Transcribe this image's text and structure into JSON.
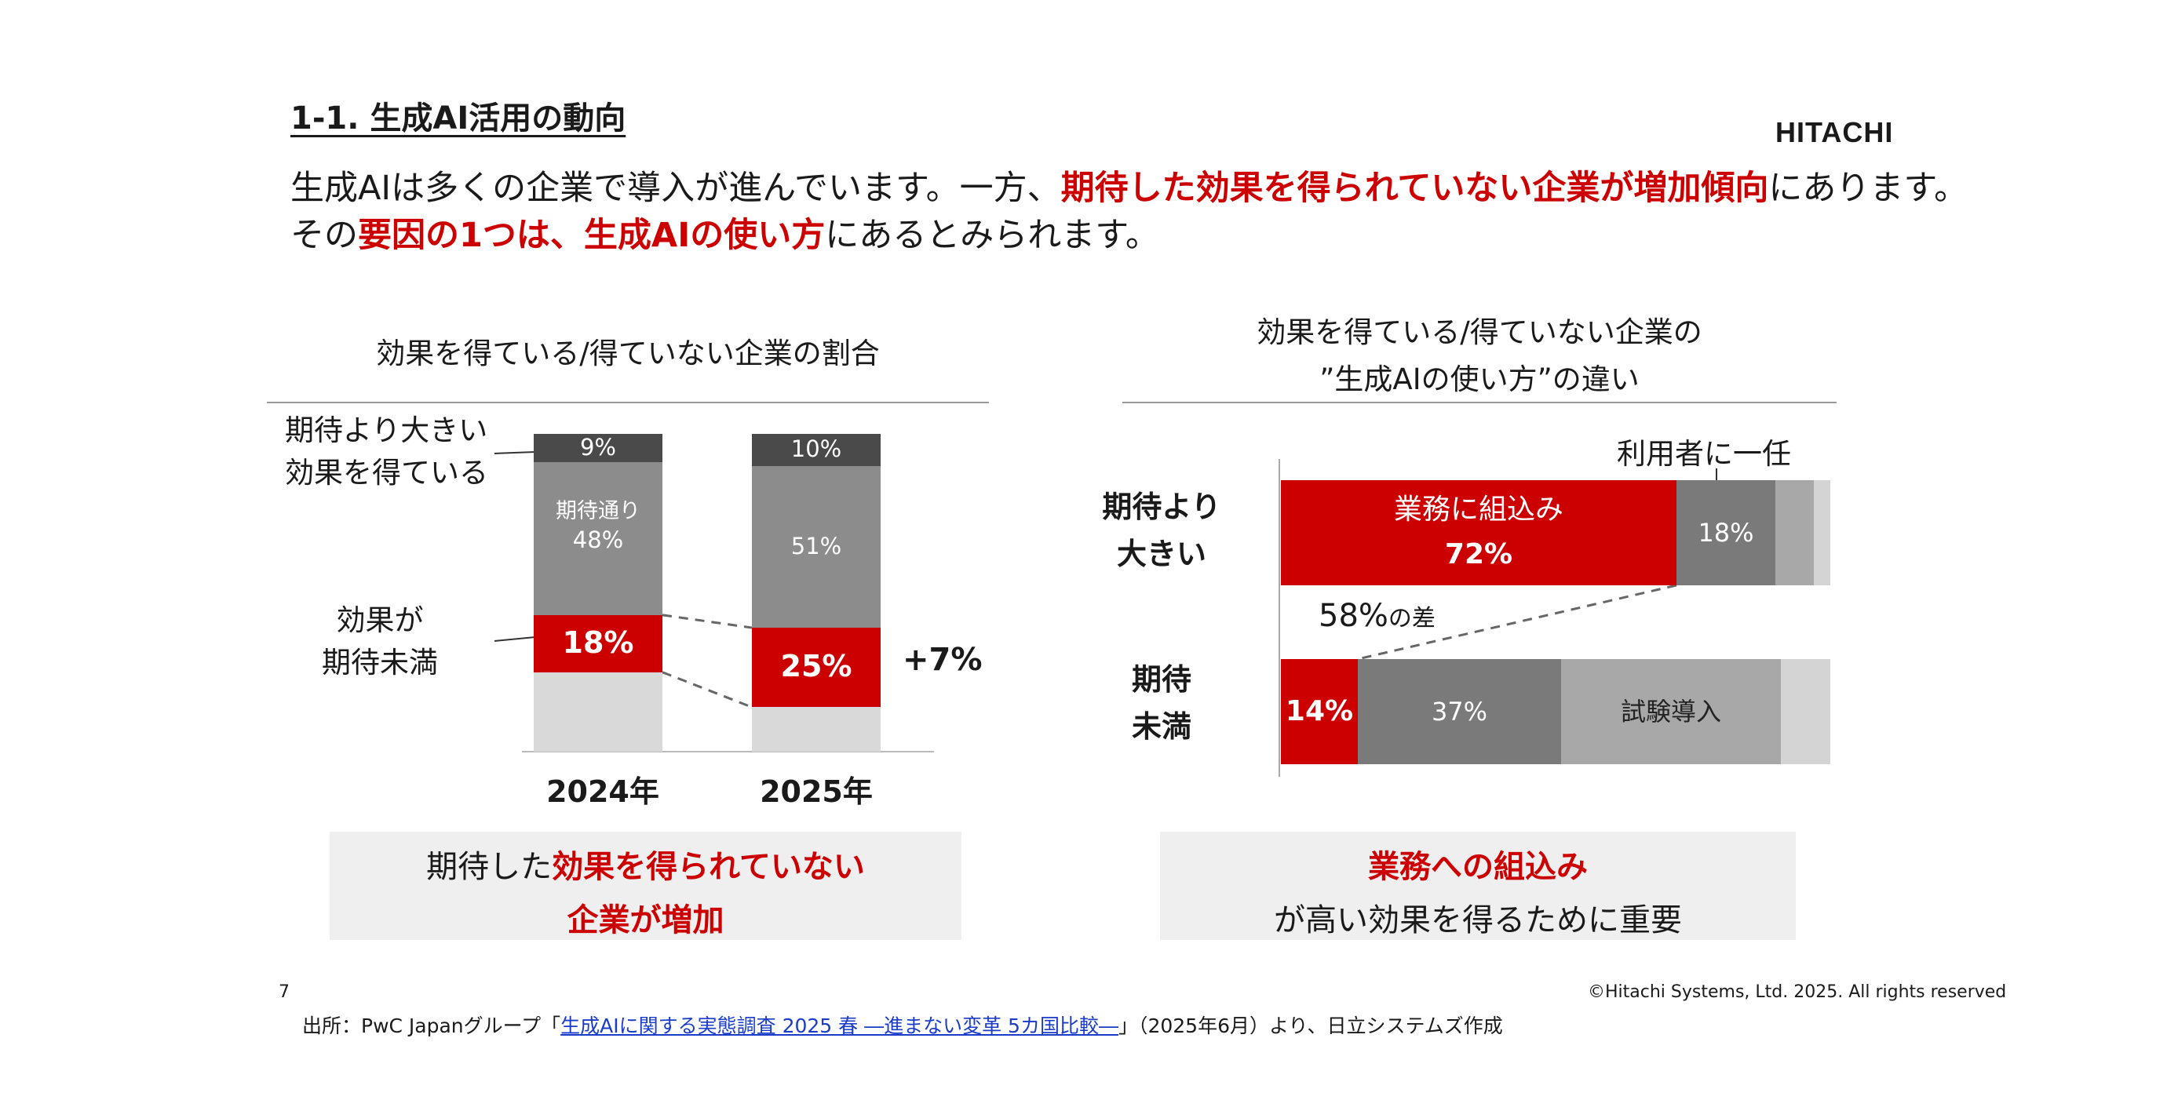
{
  "slide": {
    "title": "1-1. 生成AI活用の動向",
    "logo": "HITACHI",
    "lead_line1": [
      "生成AIは多くの企業で導入が進んでいます。一方、",
      "期待した効果を得られていない企業が増加傾向",
      "にあります。"
    ],
    "lead_line2": [
      "その",
      "要因の1つは、生成AIの使い方",
      "にあるとみられます。"
    ]
  },
  "left_chart": {
    "title": "効果を得ている/得ていない企業の割合",
    "label_above": [
      "期待より大きい",
      "効果を得ている"
    ],
    "label_below": [
      "効果が",
      "期待未満"
    ],
    "inner_label_2024": "期待通り",
    "diff_label": "+7%",
    "callout": [
      "期待した",
      "効果を得られていない",
      "企業が増加"
    ]
  },
  "right_chart": {
    "title_line1": "効果を得ている/得ていない企業の",
    "title_line2": "”生成AIの使い方”の違い",
    "label_top": "利用者に一任",
    "label_diff_num": "58%",
    "label_diff_suffix": "の差",
    "cat_top": [
      "期待より",
      "大きい"
    ],
    "cat_bottom": [
      "期待",
      "未満"
    ],
    "seg_top_red_label": "業務に組込み",
    "seg_bottom_trial_label": "試験導入",
    "callout_line1": "業務への組込み",
    "callout_line2": "が高い効果を得るために重要"
  },
  "chart_data": [
    {
      "type": "bar",
      "stacked": true,
      "categories": [
        "2024年",
        "2025年"
      ],
      "series": [
        {
          "name": "効果が期待未満",
          "values": [
            18,
            25
          ],
          "color": "#cc0000"
        },
        {
          "name": "期待通り",
          "values": [
            48,
            51
          ],
          "color": "#8c8c8c"
        },
        {
          "name": "期待より大きい効果を得ている",
          "values": [
            9,
            10
          ],
          "color": "#4a4a4a"
        }
      ],
      "value_labels": {
        "期待より大きい効果を得ている": [
          "9%",
          "10%"
        ],
        "期待通り": [
          "48%",
          "51%"
        ],
        "効果が期待未満": [
          "18%",
          "25%"
        ]
      },
      "remainder_color": "#d9d9d9",
      "ylim": [
        0,
        100
      ]
    },
    {
      "type": "bar",
      "orientation": "horizontal",
      "stacked": true,
      "categories": [
        "期待より大きい",
        "期待未満"
      ],
      "series": [
        {
          "name": "業務に組込み",
          "values": [
            72,
            14
          ],
          "labels": [
            "72%",
            "14%"
          ],
          "color": "#cc0000"
        },
        {
          "name": "利用者に一任",
          "values": [
            18,
            37
          ],
          "labels": [
            "18%",
            "37%"
          ],
          "color": "#7a7a7a"
        },
        {
          "name": "試験導入",
          "values": [
            7,
            40
          ],
          "labels": [
            "",
            ""
          ],
          "color": "#a8a8a8"
        }
      ],
      "remainder_color": "#d4d4d4",
      "xlim": [
        0,
        100
      ]
    }
  ],
  "footer": {
    "page_number": "7",
    "copyright": "©Hitachi Systems, Ltd. 2025. All rights reserved",
    "source_prefix": "出所：PwC Japanグループ「",
    "source_link": "生成AIに関する実態調査 2025 春 ―進まない変革 5カ国比較―",
    "source_suffix": "」（2025年6月）より、日立システムズ作成"
  }
}
